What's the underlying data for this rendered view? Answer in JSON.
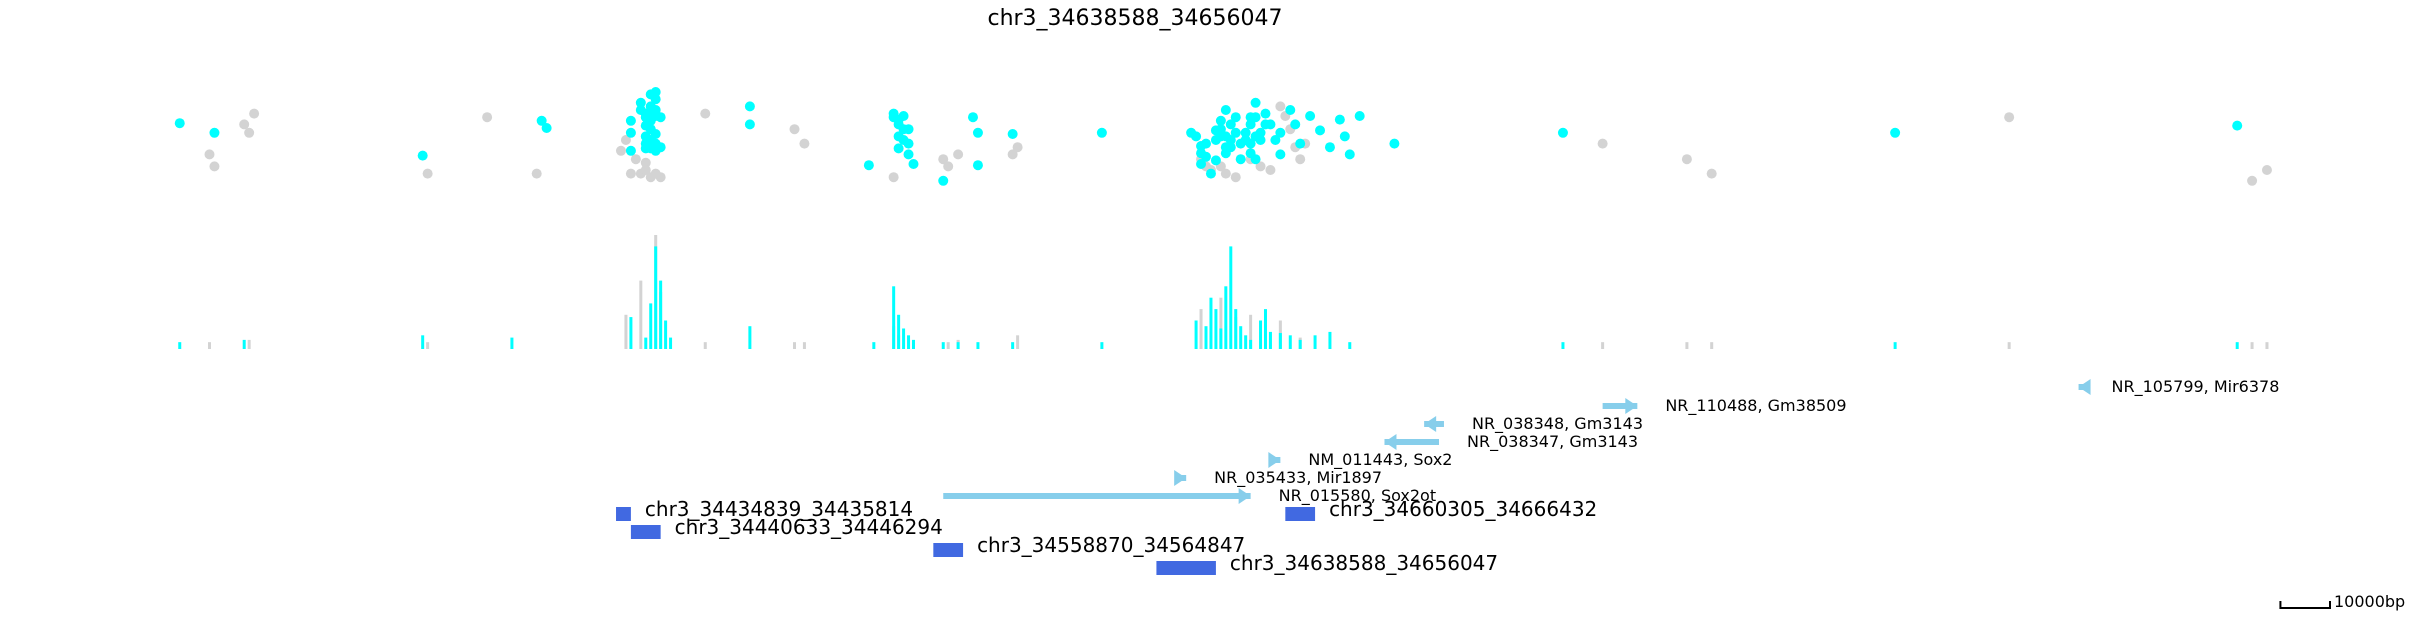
{
  "title": "chr3_34638588_34656047",
  "colors": {
    "highlight": "#00FFFF",
    "background_points": "#D3D3D3",
    "gene": "#87CEEB",
    "region": "#4169E1",
    "text": "#000000"
  },
  "chart_data": {
    "type": "scatter",
    "title": "chr3_34638588_34656047",
    "x_unit": "bp",
    "xlim": [
      34324000,
      34750000
    ],
    "scale_bar": {
      "length": 10000,
      "label": "10000bp"
    },
    "points_highlighted": [
      [
        34330000,
        0.64
      ],
      [
        34337000,
        0.56
      ],
      [
        34379000,
        0.37
      ],
      [
        34404000,
        0.6
      ],
      [
        34403000,
        0.66
      ],
      [
        34421000,
        0.66
      ],
      [
        34421000,
        0.56
      ],
      [
        34421000,
        0.41
      ],
      [
        34423000,
        0.81
      ],
      [
        34423000,
        0.75
      ],
      [
        34424000,
        0.72
      ],
      [
        34424000,
        0.69
      ],
      [
        34424000,
        0.62
      ],
      [
        34424000,
        0.53
      ],
      [
        34424000,
        0.47
      ],
      [
        34424000,
        0.43
      ],
      [
        34425000,
        0.88
      ],
      [
        34425000,
        0.78
      ],
      [
        34425000,
        0.72
      ],
      [
        34425000,
        0.66
      ],
      [
        34425000,
        0.59
      ],
      [
        34425000,
        0.5
      ],
      [
        34425000,
        0.43
      ],
      [
        34426000,
        0.9
      ],
      [
        34426000,
        0.84
      ],
      [
        34426000,
        0.75
      ],
      [
        34426000,
        0.7
      ],
      [
        34426000,
        0.55
      ],
      [
        34426000,
        0.47
      ],
      [
        34426000,
        0.41
      ],
      [
        34427000,
        0.69
      ],
      [
        34427000,
        0.44
      ],
      [
        34445000,
        0.78
      ],
      [
        34445000,
        0.63
      ],
      [
        34469000,
        0.29
      ],
      [
        34474000,
        0.72
      ],
      [
        34474000,
        0.69
      ],
      [
        34475000,
        0.67
      ],
      [
        34475000,
        0.63
      ],
      [
        34475000,
        0.53
      ],
      [
        34475000,
        0.43
      ],
      [
        34476000,
        0.7
      ],
      [
        34476000,
        0.59
      ],
      [
        34476000,
        0.5
      ],
      [
        34477000,
        0.59
      ],
      [
        34477000,
        0.47
      ],
      [
        34477000,
        0.38
      ],
      [
        34478000,
        0.3
      ],
      [
        34484000,
        0.16
      ],
      [
        34490000,
        0.69
      ],
      [
        34491000,
        0.56
      ],
      [
        34491000,
        0.29
      ],
      [
        34498000,
        0.55
      ],
      [
        34516000,
        0.56
      ],
      [
        34534000,
        0.56
      ],
      [
        34535000,
        0.53
      ],
      [
        34536000,
        0.45
      ],
      [
        34536000,
        0.39
      ],
      [
        34536000,
        0.3
      ],
      [
        34537000,
        0.47
      ],
      [
        34537000,
        0.36
      ],
      [
        34538000,
        0.22
      ],
      [
        34539000,
        0.58
      ],
      [
        34539000,
        0.5
      ],
      [
        34539000,
        0.33
      ],
      [
        34540000,
        0.66
      ],
      [
        34540000,
        0.59
      ],
      [
        34540000,
        0.53
      ],
      [
        34541000,
        0.75
      ],
      [
        34541000,
        0.53
      ],
      [
        34541000,
        0.44
      ],
      [
        34541000,
        0.39
      ],
      [
        34542000,
        0.63
      ],
      [
        34542000,
        0.5
      ],
      [
        34542000,
        0.44
      ],
      [
        34543000,
        0.69
      ],
      [
        34543000,
        0.56
      ],
      [
        34544000,
        0.47
      ],
      [
        34544000,
        0.34
      ],
      [
        34545000,
        0.56
      ],
      [
        34545000,
        0.5
      ],
      [
        34546000,
        0.69
      ],
      [
        34546000,
        0.63
      ],
      [
        34546000,
        0.47
      ],
      [
        34546000,
        0.39
      ],
      [
        34547000,
        0.81
      ],
      [
        34547000,
        0.69
      ],
      [
        34547000,
        0.53
      ],
      [
        34547000,
        0.34
      ],
      [
        34548000,
        0.56
      ],
      [
        34548000,
        0.5
      ],
      [
        34549000,
        0.72
      ],
      [
        34549000,
        0.63
      ],
      [
        34550000,
        0.63
      ],
      [
        34551000,
        0.5
      ],
      [
        34552000,
        0.56
      ],
      [
        34552000,
        0.38
      ],
      [
        34554000,
        0.75
      ],
      [
        34555000,
        0.63
      ],
      [
        34556000,
        0.47
      ],
      [
        34558000,
        0.7
      ],
      [
        34560000,
        0.58
      ],
      [
        34562000,
        0.44
      ],
      [
        34564000,
        0.67
      ],
      [
        34565000,
        0.53
      ],
      [
        34566000,
        0.38
      ],
      [
        34568000,
        0.7
      ],
      [
        34575000,
        0.47
      ],
      [
        34609000,
        0.56
      ],
      [
        34676000,
        0.56
      ],
      [
        34745000,
        0.62
      ]
    ],
    "points_background": [
      [
        34336000,
        0.38
      ],
      [
        34337000,
        0.28
      ],
      [
        34343000,
        0.63
      ],
      [
        34344000,
        0.56
      ],
      [
        34345000,
        0.72
      ],
      [
        34380000,
        0.22
      ],
      [
        34392000,
        0.69
      ],
      [
        34402000,
        0.22
      ],
      [
        34419000,
        0.41
      ],
      [
        34420000,
        0.5
      ],
      [
        34421000,
        0.22
      ],
      [
        34422000,
        0.34
      ],
      [
        34423000,
        0.22
      ],
      [
        34424000,
        0.31
      ],
      [
        34424000,
        0.25
      ],
      [
        34425000,
        0.19
      ],
      [
        34426000,
        0.22
      ],
      [
        34427000,
        0.19
      ],
      [
        34436000,
        0.72
      ],
      [
        34454000,
        0.59
      ],
      [
        34456000,
        0.47
      ],
      [
        34474000,
        0.19
      ],
      [
        34484000,
        0.34
      ],
      [
        34485000,
        0.28
      ],
      [
        34487000,
        0.38
      ],
      [
        34498000,
        0.38
      ],
      [
        34499000,
        0.44
      ],
      [
        34536000,
        0.34
      ],
      [
        34537000,
        0.28
      ],
      [
        34538000,
        0.25
      ],
      [
        34540000,
        0.28
      ],
      [
        34541000,
        0.22
      ],
      [
        34543000,
        0.19
      ],
      [
        34546000,
        0.34
      ],
      [
        34548000,
        0.28
      ],
      [
        34550000,
        0.25
      ],
      [
        34552000,
        0.78
      ],
      [
        34553000,
        0.7
      ],
      [
        34554000,
        0.59
      ],
      [
        34555000,
        0.44
      ],
      [
        34556000,
        0.34
      ],
      [
        34557000,
        0.47
      ],
      [
        34617000,
        0.47
      ],
      [
        34634000,
        0.34
      ],
      [
        34639000,
        0.22
      ],
      [
        34699000,
        0.69
      ],
      [
        34751000,
        0.25
      ],
      [
        34748000,
        0.16
      ]
    ],
    "coverage_highlighted": [
      [
        34330000,
        0.06
      ],
      [
        34343000,
        0.08
      ],
      [
        34379000,
        0.12
      ],
      [
        34397000,
        0.1
      ],
      [
        34421000,
        0.28
      ],
      [
        34424000,
        0.1
      ],
      [
        34425000,
        0.4
      ],
      [
        34426000,
        0.9
      ],
      [
        34427000,
        0.6
      ],
      [
        34428000,
        0.25
      ],
      [
        34429000,
        0.1
      ],
      [
        34445000,
        0.2
      ],
      [
        34470000,
        0.06
      ],
      [
        34474000,
        0.55
      ],
      [
        34475000,
        0.3
      ],
      [
        34476000,
        0.18
      ],
      [
        34477000,
        0.12
      ],
      [
        34478000,
        0.08
      ],
      [
        34484000,
        0.06
      ],
      [
        34487000,
        0.06
      ],
      [
        34491000,
        0.06
      ],
      [
        34498000,
        0.06
      ],
      [
        34516000,
        0.06
      ],
      [
        34535000,
        0.25
      ],
      [
        34537000,
        0.2
      ],
      [
        34538000,
        0.45
      ],
      [
        34539000,
        0.35
      ],
      [
        34540000,
        0.18
      ],
      [
        34541000,
        0.55
      ],
      [
        34542000,
        0.9
      ],
      [
        34543000,
        0.35
      ],
      [
        34544000,
        0.2
      ],
      [
        34545000,
        0.12
      ],
      [
        34546000,
        0.08
      ],
      [
        34548000,
        0.25
      ],
      [
        34549000,
        0.35
      ],
      [
        34550000,
        0.15
      ],
      [
        34552000,
        0.14
      ],
      [
        34554000,
        0.12
      ],
      [
        34556000,
        0.08
      ],
      [
        34559000,
        0.12
      ],
      [
        34562000,
        0.15
      ],
      [
        34566000,
        0.06
      ],
      [
        34609000,
        0.06
      ],
      [
        34676000,
        0.06
      ],
      [
        34745000,
        0.06
      ]
    ],
    "coverage_background": [
      [
        34336000,
        0.06
      ],
      [
        34344000,
        0.08
      ],
      [
        34380000,
        0.06
      ],
      [
        34420000,
        0.3
      ],
      [
        34423000,
        0.6
      ],
      [
        34426000,
        1.0
      ],
      [
        34427000,
        0.5
      ],
      [
        34436000,
        0.06
      ],
      [
        34454000,
        0.06
      ],
      [
        34456000,
        0.06
      ],
      [
        34474000,
        0.2
      ],
      [
        34475000,
        0.12
      ],
      [
        34485000,
        0.06
      ],
      [
        34487000,
        0.08
      ],
      [
        34499000,
        0.12
      ],
      [
        34536000,
        0.35
      ],
      [
        34540000,
        0.45
      ],
      [
        34543000,
        0.28
      ],
      [
        34546000,
        0.3
      ],
      [
        34552000,
        0.25
      ],
      [
        34556000,
        0.1
      ],
      [
        34617000,
        0.06
      ],
      [
        34634000,
        0.06
      ],
      [
        34639000,
        0.06
      ],
      [
        34699000,
        0.06
      ],
      [
        34751000,
        0.06
      ],
      [
        34748000,
        0.06
      ]
    ],
    "genes": [
      {
        "label": "NR_105799, Mir6378",
        "start": 34713000,
        "end": 34714000,
        "strand": "-",
        "row": 0
      },
      {
        "label": "NR_110488, Gm38509",
        "start": 34617000,
        "end": 34624000,
        "strand": "+",
        "row": 1
      },
      {
        "label": "NR_038348, Gm3143",
        "start": 34581000,
        "end": 34585000,
        "strand": "-",
        "row": 2
      },
      {
        "label": "NR_038347, Gm3143",
        "start": 34573000,
        "end": 34584000,
        "strand": "-",
        "row": 3
      },
      {
        "label": "NM_011443, Sox2",
        "start": 34550000,
        "end": 34552000,
        "strand": "+",
        "row": 4
      },
      {
        "label": "NR_035433, Mir1897",
        "start": 34531000,
        "end": 34533000,
        "strand": "+",
        "row": 5
      },
      {
        "label": "NR_015580, Sox2ot",
        "start": 34484000,
        "end": 34546000,
        "strand": "+",
        "row": 6
      }
    ],
    "regions": [
      {
        "label": "chr3_34434839_34435814",
        "start": 34418000,
        "end": 34421000,
        "row": 0
      },
      {
        "label": "chr3_34660305_34666432",
        "start": 34553000,
        "end": 34559000,
        "row": 0
      },
      {
        "label": "chr3_34440633_34446294",
        "start": 34421000,
        "end": 34427000,
        "row": 1
      },
      {
        "label": "chr3_34558870_34564847",
        "start": 34482000,
        "end": 34488000,
        "row": 2
      },
      {
        "label": "chr3_34638588_34656047",
        "start": 34527000,
        "end": 34539000,
        "row": 3
      }
    ]
  }
}
